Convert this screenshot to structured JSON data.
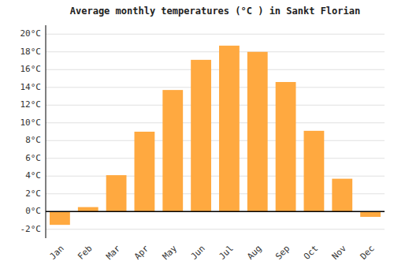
{
  "chart_data": {
    "type": "bar",
    "title": "Average monthly temperatures (°C ) in Sankt Florian",
    "categories": [
      "Jan",
      "Feb",
      "Mar",
      "Apr",
      "May",
      "Jun",
      "Jul",
      "Aug",
      "Sep",
      "Oct",
      "Nov",
      "Dec"
    ],
    "values": [
      -1.5,
      0.5,
      4.1,
      9.0,
      13.7,
      17.1,
      18.7,
      18.0,
      14.6,
      9.1,
      3.7,
      -0.6
    ],
    "color": "#FFA940",
    "ylim": [
      -3,
      21
    ],
    "yticks": [
      {
        "value": -2,
        "label": "-2°C"
      },
      {
        "value": 0,
        "label": "0°C"
      },
      {
        "value": 2,
        "label": "2°C"
      },
      {
        "value": 4,
        "label": "4°C"
      },
      {
        "value": 6,
        "label": "6°C"
      },
      {
        "value": 8,
        "label": "8°C"
      },
      {
        "value": 10,
        "label": "10°C"
      },
      {
        "value": 12,
        "label": "12°C"
      },
      {
        "value": 14,
        "label": "14°C"
      },
      {
        "value": 16,
        "label": "16°C"
      },
      {
        "value": 18,
        "label": "18°C"
      },
      {
        "value": 20,
        "label": "20°C"
      }
    ],
    "grid": true
  }
}
